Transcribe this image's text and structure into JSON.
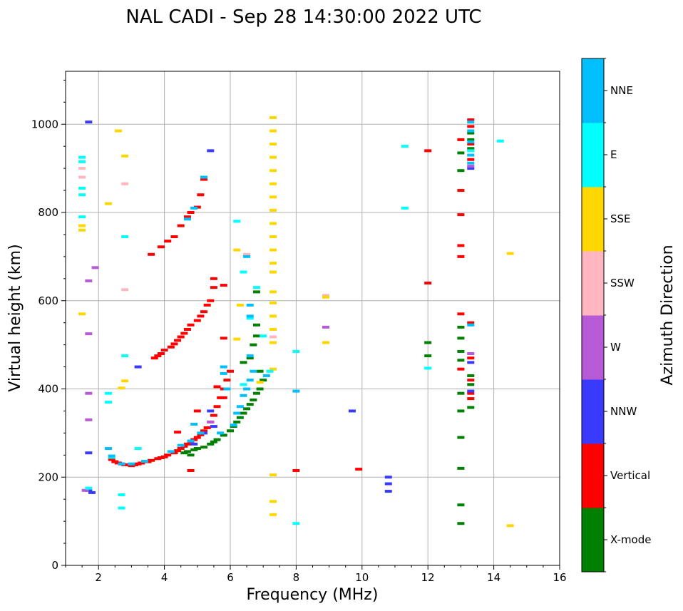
{
  "chart_data": {
    "type": "scatter",
    "title": "NAL CADI - Sep 28 14:30:00 2022 UTC",
    "xlabel": "Frequency (MHz)",
    "ylabel": "Virtual height (km)",
    "xlim": [
      1,
      16
    ],
    "ylim": [
      0,
      1120
    ],
    "xticks": [
      2,
      4,
      6,
      8,
      10,
      12,
      14,
      16
    ],
    "yticks": [
      0,
      200,
      400,
      600,
      800,
      1000
    ],
    "grid": true,
    "colorbar": {
      "label": "Azimuth Direction",
      "categories": [
        {
          "name": "X-mode",
          "color": "#008000"
        },
        {
          "name": "Vertical",
          "color": "#ff0000"
        },
        {
          "name": "NNW",
          "color": "#3a3aff"
        },
        {
          "name": "W",
          "color": "#b65ad6"
        },
        {
          "name": "SSW",
          "color": "#ffb6c1"
        },
        {
          "name": "SSE",
          "color": "#ffd700"
        },
        {
          "name": "E",
          "color": "#00ffff"
        },
        {
          "name": "NNE",
          "color": "#00bfff"
        }
      ]
    },
    "series": [
      {
        "name": "Vertical",
        "color": "#ff0000",
        "points": [
          [
            2.4,
            240
          ],
          [
            2.5,
            235
          ],
          [
            2.6,
            232
          ],
          [
            2.7,
            230
          ],
          [
            2.8,
            228
          ],
          [
            2.9,
            228
          ],
          [
            3.0,
            226
          ],
          [
            3.1,
            228
          ],
          [
            3.2,
            230
          ],
          [
            3.3,
            232
          ],
          [
            3.5,
            235
          ],
          [
            3.6,
            238
          ],
          [
            3.8,
            242
          ],
          [
            3.9,
            244
          ],
          [
            4.0,
            246
          ],
          [
            4.1,
            250
          ],
          [
            4.3,
            255
          ],
          [
            4.4,
            260
          ],
          [
            4.5,
            265
          ],
          [
            4.6,
            270
          ],
          [
            4.7,
            275
          ],
          [
            4.8,
            280
          ],
          [
            4.9,
            285
          ],
          [
            5.0,
            290
          ],
          [
            5.1,
            296
          ],
          [
            5.2,
            305
          ],
          [
            5.3,
            312
          ],
          [
            5.4,
            325
          ],
          [
            5.5,
            340
          ],
          [
            5.6,
            360
          ],
          [
            5.7,
            380
          ],
          [
            5.8,
            400
          ],
          [
            5.9,
            420
          ],
          [
            6.0,
            440
          ],
          [
            3.7,
            470
          ],
          [
            3.8,
            475
          ],
          [
            3.9,
            480
          ],
          [
            4.0,
            488
          ],
          [
            4.2,
            495
          ],
          [
            4.3,
            502
          ],
          [
            4.4,
            510
          ],
          [
            4.5,
            518
          ],
          [
            4.6,
            526
          ],
          [
            4.7,
            535
          ],
          [
            4.8,
            545
          ],
          [
            5.0,
            555
          ],
          [
            5.1,
            565
          ],
          [
            5.2,
            575
          ],
          [
            5.3,
            590
          ],
          [
            5.4,
            600
          ],
          [
            5.5,
            630
          ],
          [
            5.5,
            650
          ],
          [
            5.8,
            635
          ],
          [
            5.8,
            515
          ],
          [
            3.6,
            705
          ],
          [
            3.9,
            722
          ],
          [
            4.1,
            735
          ],
          [
            4.3,
            745
          ],
          [
            4.5,
            770
          ],
          [
            4.7,
            790
          ],
          [
            4.8,
            800
          ],
          [
            5.0,
            812
          ],
          [
            5.1,
            840
          ],
          [
            5.2,
            875
          ],
          [
            4.8,
            215
          ],
          [
            4.4,
            302
          ],
          [
            5.0,
            350
          ],
          [
            5.6,
            405
          ],
          [
            5.8,
            380
          ],
          [
            8.0,
            215
          ],
          [
            9.9,
            218
          ],
          [
            12.0,
            640
          ],
          [
            12.0,
            940
          ],
          [
            13.0,
            965
          ],
          [
            13.0,
            850
          ],
          [
            13.0,
            795
          ],
          [
            13.0,
            725
          ],
          [
            13.0,
            700
          ],
          [
            13.0,
            570
          ],
          [
            13.0,
            445
          ],
          [
            13.3,
            1010
          ],
          [
            13.3,
            995
          ],
          [
            13.3,
            955
          ],
          [
            13.3,
            920
          ],
          [
            13.3,
            550
          ],
          [
            13.3,
            470
          ],
          [
            13.3,
            420
          ],
          [
            13.3,
            390
          ],
          [
            13.3,
            378
          ]
        ]
      },
      {
        "name": "X-mode",
        "color": "#008000",
        "points": [
          [
            4.6,
            255
          ],
          [
            4.7,
            258
          ],
          [
            4.8,
            250
          ],
          [
            4.9,
            262
          ],
          [
            5.0,
            265
          ],
          [
            5.2,
            268
          ],
          [
            5.4,
            275
          ],
          [
            5.5,
            280
          ],
          [
            5.6,
            285
          ],
          [
            5.8,
            295
          ],
          [
            6.0,
            305
          ],
          [
            6.1,
            315
          ],
          [
            6.2,
            325
          ],
          [
            6.3,
            335
          ],
          [
            6.4,
            345
          ],
          [
            6.5,
            355
          ],
          [
            6.6,
            365
          ],
          [
            6.7,
            375
          ],
          [
            6.8,
            390
          ],
          [
            6.9,
            400
          ],
          [
            7.0,
            420
          ],
          [
            6.4,
            460
          ],
          [
            6.6,
            470
          ],
          [
            6.7,
            500
          ],
          [
            6.8,
            520
          ],
          [
            6.8,
            545
          ],
          [
            6.8,
            620
          ],
          [
            6.9,
            440
          ],
          [
            12.0,
            505
          ],
          [
            12.0,
            475
          ],
          [
            13.0,
            935
          ],
          [
            13.0,
            895
          ],
          [
            13.0,
            540
          ],
          [
            13.0,
            515
          ],
          [
            13.0,
            485
          ],
          [
            13.0,
            465
          ],
          [
            13.0,
            390
          ],
          [
            13.0,
            350
          ],
          [
            13.0,
            290
          ],
          [
            13.0,
            220
          ],
          [
            13.0,
            137
          ],
          [
            13.0,
            95
          ],
          [
            13.3,
            980
          ],
          [
            13.3,
            965
          ],
          [
            13.3,
            945
          ],
          [
            13.3,
            430
          ],
          [
            13.3,
            410
          ],
          [
            13.3,
            358
          ]
        ]
      },
      {
        "name": "NNW",
        "color": "#3a3aff",
        "points": [
          [
            1.7,
            1005
          ],
          [
            1.7,
            255
          ],
          [
            1.8,
            165
          ],
          [
            1.7,
            170
          ],
          [
            5.4,
            940
          ],
          [
            5.4,
            350
          ],
          [
            5.2,
            300
          ],
          [
            4.9,
            275
          ],
          [
            5.5,
            315
          ],
          [
            3.2,
            450
          ],
          [
            9.7,
            350
          ],
          [
            10.8,
            200
          ],
          [
            10.8,
            185
          ],
          [
            10.8,
            168
          ],
          [
            13.3,
            900
          ],
          [
            13.3,
            395
          ],
          [
            13.3,
            460
          ]
        ]
      },
      {
        "name": "W",
        "color": "#b65ad6",
        "points": [
          [
            1.7,
            390
          ],
          [
            1.7,
            330
          ],
          [
            1.9,
            675
          ],
          [
            1.7,
            645
          ],
          [
            1.7,
            525
          ],
          [
            1.6,
            170
          ],
          [
            5.4,
            325
          ],
          [
            8.9,
            540
          ],
          [
            13.3,
            905
          ],
          [
            13.3,
            480
          ]
        ]
      },
      {
        "name": "SSW",
        "color": "#ffb6c1",
        "points": [
          [
            1.5,
            900
          ],
          [
            2.8,
            865
          ],
          [
            2.8,
            625
          ],
          [
            6.5,
            705
          ],
          [
            7.3,
            518
          ],
          [
            8.9,
            612
          ],
          [
            1.5,
            880
          ]
        ]
      },
      {
        "name": "SSE",
        "color": "#ffd700",
        "points": [
          [
            2.6,
            985
          ],
          [
            2.8,
            928
          ],
          [
            2.3,
            820
          ],
          [
            1.5,
            760
          ],
          [
            1.5,
            770
          ],
          [
            1.5,
            570
          ],
          [
            2.8,
            418
          ],
          [
            2.7,
            402
          ],
          [
            7.3,
            1015
          ],
          [
            7.3,
            985
          ],
          [
            7.3,
            955
          ],
          [
            7.3,
            925
          ],
          [
            7.3,
            895
          ],
          [
            7.3,
            865
          ],
          [
            7.3,
            835
          ],
          [
            7.3,
            805
          ],
          [
            7.3,
            775
          ],
          [
            7.3,
            745
          ],
          [
            7.3,
            715
          ],
          [
            7.3,
            685
          ],
          [
            7.3,
            665
          ],
          [
            7.3,
            620
          ],
          [
            7.3,
            595
          ],
          [
            7.3,
            565
          ],
          [
            7.3,
            535
          ],
          [
            7.3,
            505
          ],
          [
            7.3,
            445
          ],
          [
            7.3,
            205
          ],
          [
            7.3,
            145
          ],
          [
            7.3,
            115
          ],
          [
            6.2,
            513
          ],
          [
            6.3,
            590
          ],
          [
            6.2,
            715
          ],
          [
            8.9,
            608
          ],
          [
            8.9,
            505
          ],
          [
            14.5,
            707
          ],
          [
            14.5,
            90
          ],
          [
            6.9,
            415
          ]
        ]
      },
      {
        "name": "E",
        "color": "#00ffff",
        "points": [
          [
            1.5,
            925
          ],
          [
            1.5,
            915
          ],
          [
            1.5,
            855
          ],
          [
            1.5,
            840
          ],
          [
            1.5,
            790
          ],
          [
            2.8,
            745
          ],
          [
            2.8,
            475
          ],
          [
            2.7,
            160
          ],
          [
            2.7,
            130
          ],
          [
            1.7,
            175
          ],
          [
            2.3,
            390
          ],
          [
            2.3,
            370
          ],
          [
            2.4,
            245
          ],
          [
            3.2,
            265
          ],
          [
            6.2,
            780
          ],
          [
            6.4,
            665
          ],
          [
            6.4,
            410
          ],
          [
            6.6,
            560
          ],
          [
            7.0,
            520
          ],
          [
            7.2,
            440
          ],
          [
            6.8,
            630
          ],
          [
            8.0,
            485
          ],
          [
            8.0,
            95
          ],
          [
            11.3,
            950
          ],
          [
            11.3,
            810
          ],
          [
            12.0,
            447
          ],
          [
            14.2,
            962
          ],
          [
            13.3,
            940
          ]
        ]
      },
      {
        "name": "NNE",
        "color": "#00bfff",
        "points": [
          [
            2.3,
            265
          ],
          [
            2.4,
            248
          ],
          [
            2.7,
            230
          ],
          [
            3.0,
            230
          ],
          [
            3.4,
            236
          ],
          [
            4.2,
            258
          ],
          [
            4.5,
            272
          ],
          [
            4.8,
            282
          ],
          [
            4.9,
            320
          ],
          [
            5.1,
            300
          ],
          [
            5.2,
            880
          ],
          [
            4.9,
            810
          ],
          [
            4.7,
            785
          ],
          [
            6.1,
            318
          ],
          [
            6.2,
            345
          ],
          [
            6.3,
            360
          ],
          [
            6.4,
            385
          ],
          [
            6.5,
            400
          ],
          [
            6.6,
            420
          ],
          [
            6.6,
            475
          ],
          [
            6.7,
            440
          ],
          [
            6.6,
            565
          ],
          [
            6.6,
            590
          ],
          [
            6.5,
            700
          ],
          [
            5.8,
            450
          ],
          [
            5.7,
            300
          ],
          [
            5.9,
            400
          ],
          [
            5.8,
            435
          ],
          [
            7.1,
            430
          ],
          [
            8.0,
            395
          ],
          [
            13.3,
            1005
          ],
          [
            13.3,
            985
          ],
          [
            13.3,
            960
          ],
          [
            13.3,
            930
          ],
          [
            13.3,
            912
          ],
          [
            13.3,
            545
          ]
        ]
      }
    ]
  }
}
